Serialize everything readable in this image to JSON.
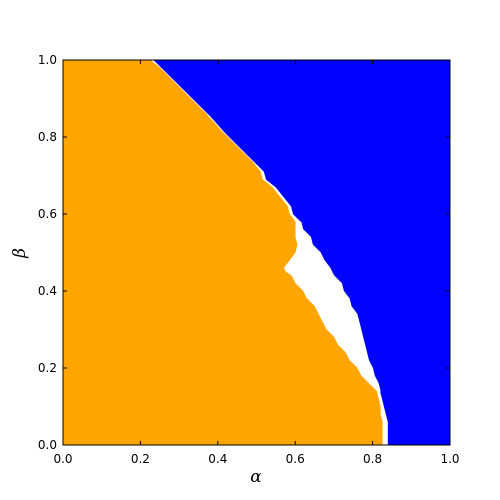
{
  "chart_data": {
    "type": "heatmap",
    "title": "",
    "xlabel": "α",
    "ylabel": "β",
    "xlim": [
      0.0,
      1.0
    ],
    "ylim": [
      0.0,
      1.0
    ],
    "xticks": [
      "0.0",
      "0.2",
      "0.4",
      "0.6",
      "0.8",
      "1.0"
    ],
    "yticks": [
      "0.0",
      "0.2",
      "0.4",
      "0.6",
      "0.8",
      "1.0"
    ],
    "grid": false,
    "legend": "none",
    "background_color": "#ffffff",
    "regions": [
      {
        "id": "blue-region",
        "color": "#0000ff",
        "boundary": [
          [
            0.235,
            1.0
          ],
          [
            0.26,
            0.975
          ],
          [
            0.3,
            0.935
          ],
          [
            0.34,
            0.895
          ],
          [
            0.38,
            0.855
          ],
          [
            0.42,
            0.81
          ],
          [
            0.46,
            0.77
          ],
          [
            0.5,
            0.73
          ],
          [
            0.52,
            0.71
          ],
          [
            0.525,
            0.69
          ],
          [
            0.55,
            0.67
          ],
          [
            0.57,
            0.645
          ],
          [
            0.59,
            0.62
          ],
          [
            0.595,
            0.6
          ],
          [
            0.615,
            0.58
          ],
          [
            0.62,
            0.56
          ],
          [
            0.64,
            0.54
          ],
          [
            0.645,
            0.52
          ],
          [
            0.665,
            0.5
          ],
          [
            0.675,
            0.48
          ],
          [
            0.69,
            0.46
          ],
          [
            0.7,
            0.44
          ],
          [
            0.72,
            0.42
          ],
          [
            0.725,
            0.4
          ],
          [
            0.74,
            0.38
          ],
          [
            0.745,
            0.36
          ],
          [
            0.76,
            0.34
          ],
          [
            0.765,
            0.32
          ],
          [
            0.77,
            0.3
          ],
          [
            0.775,
            0.28
          ],
          [
            0.78,
            0.26
          ],
          [
            0.785,
            0.24
          ],
          [
            0.79,
            0.22
          ],
          [
            0.8,
            0.2
          ],
          [
            0.805,
            0.18
          ],
          [
            0.815,
            0.16
          ],
          [
            0.82,
            0.14
          ],
          [
            0.825,
            0.12
          ],
          [
            0.83,
            0.1
          ],
          [
            0.835,
            0.08
          ],
          [
            0.84,
            0.06
          ],
          [
            0.84,
            0.0
          ],
          [
            1.0,
            0.0
          ],
          [
            1.0,
            1.0
          ]
        ]
      },
      {
        "id": "white-region",
        "color": "#ffffff",
        "boundary": [
          [
            0.6,
            0.56
          ],
          [
            0.615,
            0.58
          ],
          [
            0.62,
            0.56
          ],
          [
            0.64,
            0.54
          ],
          [
            0.645,
            0.52
          ],
          [
            0.665,
            0.5
          ],
          [
            0.675,
            0.48
          ],
          [
            0.69,
            0.46
          ],
          [
            0.7,
            0.44
          ],
          [
            0.72,
            0.42
          ],
          [
            0.725,
            0.4
          ],
          [
            0.74,
            0.38
          ],
          [
            0.745,
            0.36
          ],
          [
            0.76,
            0.34
          ],
          [
            0.765,
            0.32
          ],
          [
            0.77,
            0.3
          ],
          [
            0.775,
            0.28
          ],
          [
            0.78,
            0.26
          ],
          [
            0.785,
            0.24
          ],
          [
            0.79,
            0.22
          ],
          [
            0.8,
            0.2
          ],
          [
            0.805,
            0.18
          ],
          [
            0.815,
            0.16
          ],
          [
            0.82,
            0.14
          ],
          [
            0.81,
            0.14
          ],
          [
            0.79,
            0.16
          ],
          [
            0.77,
            0.18
          ],
          [
            0.76,
            0.2
          ],
          [
            0.74,
            0.22
          ],
          [
            0.73,
            0.24
          ],
          [
            0.71,
            0.26
          ],
          [
            0.7,
            0.28
          ],
          [
            0.68,
            0.3
          ],
          [
            0.67,
            0.32
          ],
          [
            0.66,
            0.34
          ],
          [
            0.65,
            0.36
          ],
          [
            0.63,
            0.38
          ],
          [
            0.62,
            0.4
          ],
          [
            0.6,
            0.42
          ],
          [
            0.59,
            0.44
          ],
          [
            0.575,
            0.45
          ],
          [
            0.57,
            0.46
          ],
          [
            0.585,
            0.48
          ],
          [
            0.6,
            0.5
          ],
          [
            0.605,
            0.52
          ],
          [
            0.6,
            0.54
          ]
        ]
      },
      {
        "id": "orange-region",
        "color": "#ffa500",
        "boundary": [
          [
            0.0,
            0.0
          ],
          [
            0.0,
            1.0
          ],
          [
            0.225,
            1.0
          ],
          [
            0.25,
            0.98
          ],
          [
            0.29,
            0.94
          ],
          [
            0.33,
            0.9
          ],
          [
            0.37,
            0.86
          ],
          [
            0.41,
            0.815
          ],
          [
            0.45,
            0.775
          ],
          [
            0.49,
            0.735
          ],
          [
            0.51,
            0.71
          ],
          [
            0.515,
            0.69
          ],
          [
            0.54,
            0.67
          ],
          [
            0.56,
            0.645
          ],
          [
            0.58,
            0.62
          ],
          [
            0.585,
            0.6
          ],
          [
            0.6,
            0.58
          ],
          [
            0.6,
            0.56
          ],
          [
            0.6,
            0.54
          ],
          [
            0.605,
            0.52
          ],
          [
            0.6,
            0.5
          ],
          [
            0.585,
            0.48
          ],
          [
            0.57,
            0.46
          ],
          [
            0.575,
            0.45
          ],
          [
            0.59,
            0.44
          ],
          [
            0.6,
            0.42
          ],
          [
            0.62,
            0.4
          ],
          [
            0.63,
            0.38
          ],
          [
            0.65,
            0.36
          ],
          [
            0.66,
            0.34
          ],
          [
            0.67,
            0.32
          ],
          [
            0.68,
            0.3
          ],
          [
            0.7,
            0.28
          ],
          [
            0.71,
            0.26
          ],
          [
            0.73,
            0.24
          ],
          [
            0.74,
            0.22
          ],
          [
            0.76,
            0.2
          ],
          [
            0.77,
            0.18
          ],
          [
            0.79,
            0.16
          ],
          [
            0.81,
            0.14
          ],
          [
            0.815,
            0.12
          ],
          [
            0.82,
            0.1
          ],
          [
            0.82,
            0.08
          ],
          [
            0.825,
            0.06
          ],
          [
            0.825,
            0.0
          ]
        ]
      }
    ]
  }
}
